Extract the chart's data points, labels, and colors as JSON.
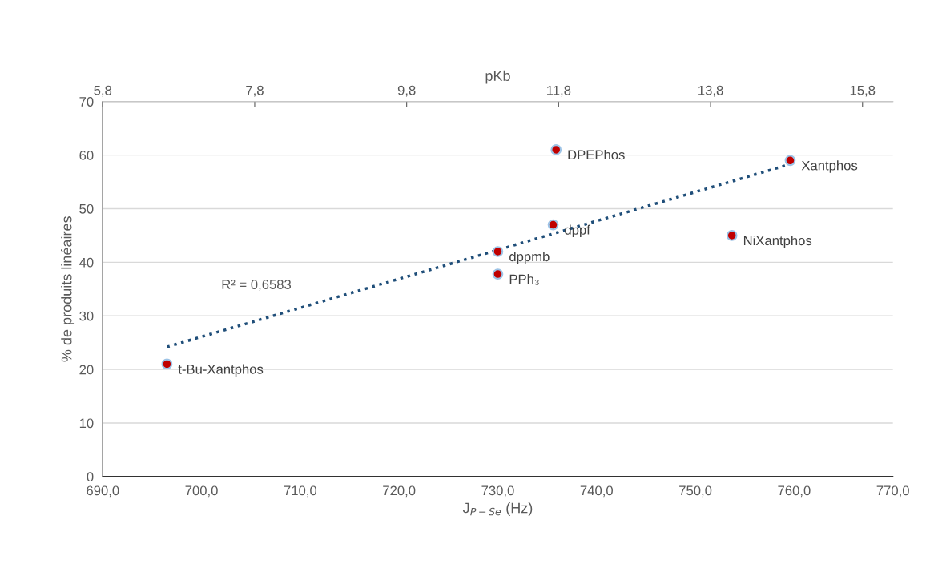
{
  "chart_data": {
    "type": "scatter",
    "xlabel": "J$_{P−Se}$ (Hz)",
    "ylabel": "% de produits linéaires",
    "x2label": "pKb",
    "series": [
      {
        "color": "#c00000",
        "x": [
          696.5,
          730.0,
          730.0,
          735.6,
          735.9,
          753.7,
          759.6
        ],
        "values": [
          21,
          37.8,
          42,
          47,
          61,
          45,
          59
        ]
      },
      {
        "type": "line",
        "color": "#1f4e79",
        "line_style": "dotted",
        "marker": "none",
        "x": [
          696.5,
          759.6
        ],
        "values": [
          24.2,
          58.3
        ]
      }
    ],
    "marker": "circle",
    "xlim": [
      690,
      770
    ],
    "xticks": [
      {
        "value": 690,
        "label": "690,0"
      },
      {
        "value": 700,
        "label": "700,0"
      },
      {
        "value": 710,
        "label": "710,0"
      },
      {
        "value": 720,
        "label": "720,0"
      },
      {
        "value": 730,
        "label": "730,0"
      },
      {
        "value": 740,
        "label": "740,0"
      },
      {
        "value": 750,
        "label": "750,0"
      },
      {
        "value": 760,
        "label": "760,0"
      },
      {
        "value": 770,
        "label": "770,0"
      }
    ],
    "ylim": [
      0,
      70
    ],
    "yticks": [
      0,
      10,
      20,
      30,
      40,
      50,
      60,
      70
    ],
    "x2lim": [
      5.8,
      16.2
    ],
    "x2ticks": [
      {
        "value": 5.8,
        "label": "5,8"
      },
      {
        "value": 7.8,
        "label": "7,8"
      },
      {
        "value": 9.8,
        "label": "9,8"
      },
      {
        "value": 11.8,
        "label": "11,8"
      },
      {
        "value": 13.8,
        "label": "13,8"
      },
      {
        "value": 15.8,
        "label": "15,8"
      }
    ],
    "grid": "y",
    "legend": false,
    "annotations": [
      {
        "text": "t-Bu-Xantphos",
        "x": 696.5,
        "y": 21
      },
      {
        "text": "PPh₃",
        "x": 730.0,
        "y": 37.8
      },
      {
        "text": "dppmb",
        "x": 730.0,
        "y": 42
      },
      {
        "text": "dppf",
        "x": 735.6,
        "y": 47
      },
      {
        "text": "DPEPhos",
        "x": 735.9,
        "y": 61
      },
      {
        "text": "NiXantphos",
        "x": 753.7,
        "y": 45
      },
      {
        "text": "Xantphos",
        "x": 759.6,
        "y": 59
      },
      "R² = 0,6583"
    ]
  }
}
